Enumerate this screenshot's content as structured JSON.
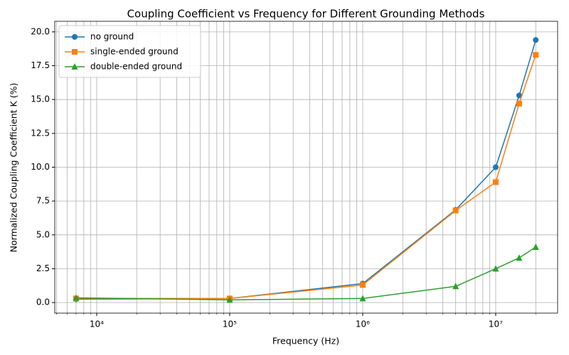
{
  "chart_data": {
    "type": "line",
    "title": "Coupling Coefficient vs Frequency for Different Grounding Methods",
    "xlabel": "Frequency (Hz)",
    "ylabel": "Normalized Coupling Coefficient K (%)",
    "x": [
      7000,
      100000,
      1000000,
      5000000,
      10000000,
      15000000,
      20000000
    ],
    "series": [
      {
        "name": "no ground",
        "color": "#1f77b4",
        "marker": "circle",
        "values": [
          0.25,
          0.3,
          1.4,
          6.85,
          10.0,
          15.3,
          19.4
        ]
      },
      {
        "name": "single-ended ground",
        "color": "#ff7f0e",
        "marker": "square",
        "values": [
          0.3,
          0.3,
          1.3,
          6.8,
          8.9,
          14.7,
          18.3
        ]
      },
      {
        "name": "double-ended ground",
        "color": "#2ca02c",
        "marker": "triangle",
        "values": [
          0.35,
          0.2,
          0.3,
          1.2,
          2.5,
          3.3,
          4.1
        ]
      }
    ],
    "xscale": "log",
    "xlim": [
      4840,
      29200000
    ],
    "xticks": [
      {
        "value": 10000,
        "label": "10⁴"
      },
      {
        "value": 100000,
        "label": "10⁵"
      },
      {
        "value": 1000000,
        "label": "10⁶"
      },
      {
        "value": 10000000,
        "label": "10⁷"
      }
    ],
    "ylim": [
      -0.78,
      20.78
    ],
    "yticks": [
      {
        "value": 0,
        "label": "0.0"
      },
      {
        "value": 2.5,
        "label": "2.5"
      },
      {
        "value": 5,
        "label": "5.0"
      },
      {
        "value": 7.5,
        "label": "7.5"
      },
      {
        "value": 10,
        "label": "10.0"
      },
      {
        "value": 12.5,
        "label": "12.5"
      },
      {
        "value": 15,
        "label": "15.0"
      },
      {
        "value": 17.5,
        "label": "17.5"
      },
      {
        "value": 20,
        "label": "20.0"
      }
    ],
    "grid": true,
    "legend": "upper left"
  }
}
